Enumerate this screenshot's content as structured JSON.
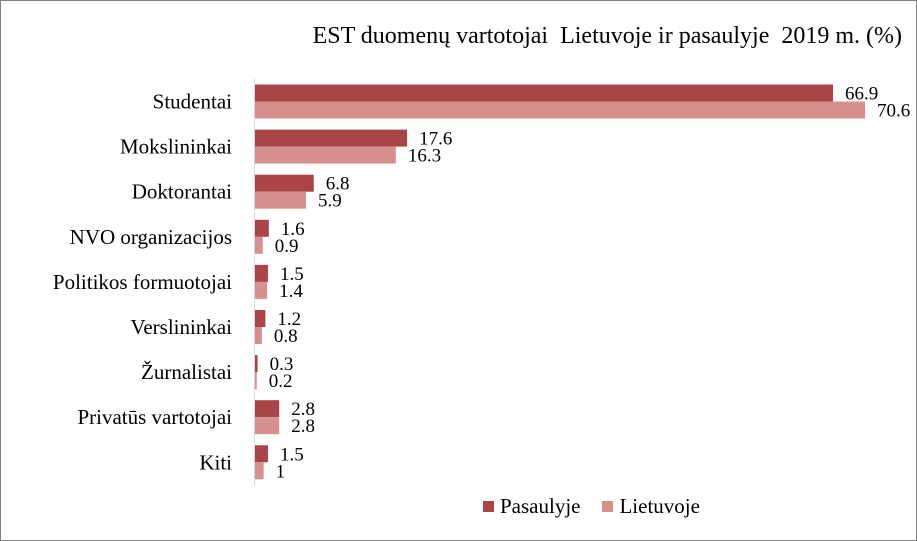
{
  "chart_data": {
    "type": "bar",
    "orientation": "horizontal",
    "title": "EST duomenų vartotojai  Lietuvoje ir pasaulyje  2019 m. (%)",
    "categories": [
      "Studentai",
      "Mokslininkai",
      "Doktorantai",
      "NVO organizacijos",
      "Politikos formuotojai",
      "Verslininkai",
      "Žurnalistai",
      "Privatūs vartotojai",
      "Kiti"
    ],
    "series": [
      {
        "name": "Pasaulyje",
        "color": "#a94546",
        "values": [
          66.9,
          17.6,
          6.8,
          1.6,
          1.5,
          1.2,
          0.3,
          2.8,
          1.5
        ],
        "labels": [
          "66.9",
          "17.6",
          "6.8",
          "1.6",
          "1.5",
          "1.2",
          "0.3",
          "2.8",
          "1.5"
        ]
      },
      {
        "name": "Lietuvoje",
        "color": "#d6918f",
        "values": [
          70.6,
          16.3,
          5.9,
          0.9,
          1.4,
          0.8,
          0.2,
          2.8,
          1
        ],
        "labels": [
          "70.6",
          "16.3",
          "5.9",
          "0.9",
          "1.4",
          "0.8",
          "0.2",
          "2.8",
          "1"
        ]
      }
    ],
    "xlim": [
      0,
      70.6
    ],
    "grid": false,
    "legend": "bottom"
  }
}
